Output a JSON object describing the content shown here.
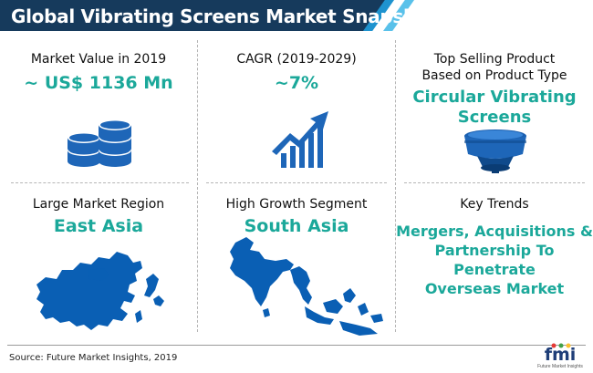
{
  "header": {
    "title": "Global Vibrating Screens Market Snapshot"
  },
  "cells": {
    "market_value": {
      "label": "Market Value in 2019",
      "value": "~ US$ 1136 Mn",
      "icon": "coin-stack-icon"
    },
    "cagr": {
      "label": "CAGR (2019-2029)",
      "value": "~7%",
      "icon": "growth-chart-icon"
    },
    "top_product": {
      "label_line1": "Top Selling Product",
      "label_line2": "Based on Product Type",
      "value_line1": "Circular Vibrating",
      "value_line2": "Screens",
      "icon": "vibrating-screen-icon"
    },
    "market_region": {
      "label": "Large Market Region",
      "value": "East Asia",
      "icon": "east-asia-map-icon"
    },
    "growth_segment": {
      "label": "High Growth Segment",
      "value": "South Asia",
      "icon": "south-asia-map-icon"
    },
    "key_trends": {
      "label": "Key Trends",
      "value_line1": "Mergers, Acquisitions &",
      "value_line2": "Partnership To Penetrate",
      "value_line3": "Overseas Market"
    }
  },
  "footer": {
    "source": "Source: Future Market Insights, 2019",
    "logo_text": "fmi",
    "logo_subtext": "Future Market Insights"
  },
  "colors": {
    "header_dark": "#163a5c",
    "accent_teal": "#1ba89a",
    "icon_blue": "#1e66b8",
    "map_blue": "#0a5fb4"
  }
}
